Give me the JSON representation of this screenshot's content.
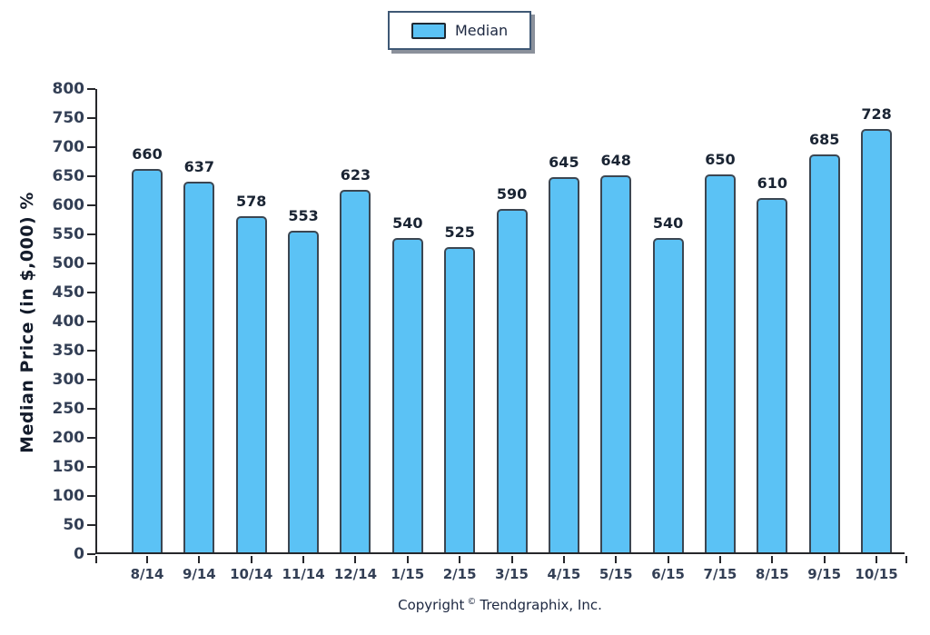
{
  "chart_data": {
    "type": "bar",
    "title": "",
    "categories": [
      "8/14",
      "9/14",
      "10/14",
      "11/14",
      "12/14",
      "1/15",
      "2/15",
      "3/15",
      "4/15",
      "5/15",
      "6/15",
      "7/15",
      "8/15",
      "9/15",
      "10/15"
    ],
    "values": [
      660,
      637,
      578,
      553,
      623,
      540,
      525,
      590,
      645,
      648,
      540,
      650,
      610,
      685,
      728
    ],
    "series_name": "Median",
    "xlabel": "",
    "ylabel": "Median Price (in $,000) %",
    "ylim": [
      0,
      800
    ],
    "yticks": [
      0,
      50,
      100,
      150,
      200,
      250,
      300,
      350,
      400,
      450,
      500,
      550,
      600,
      650,
      700,
      750,
      800
    ],
    "grid": false,
    "legend_position": "top-center",
    "bar_color": "#5bc2f5",
    "bar_border_color": "#3b4652",
    "axis_color": "#26272b",
    "tick_label_color": "#333f55",
    "value_label_color": "#1a2433"
  },
  "legend": {
    "label": "Median"
  },
  "footer": {
    "prefix": "Copyright",
    "symbol": "©",
    "company": "Trendgraphix, Inc."
  }
}
